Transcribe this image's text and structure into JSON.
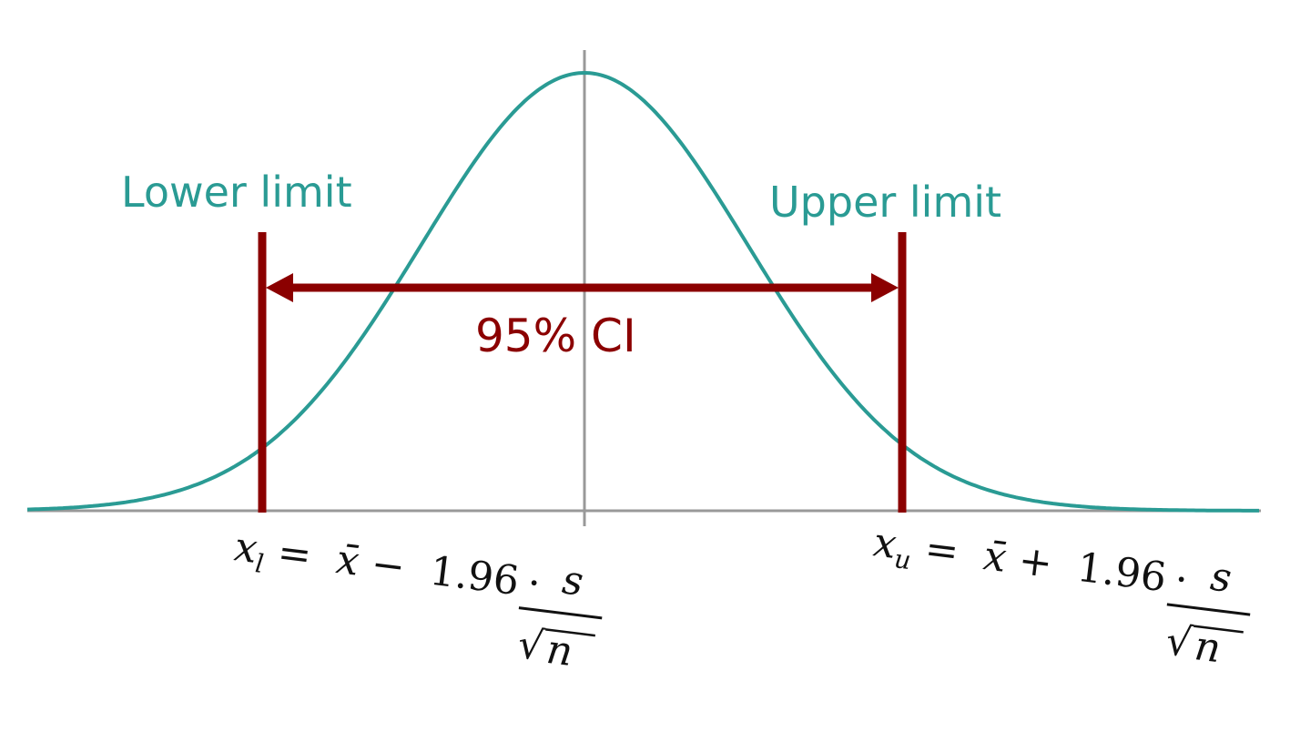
{
  "labels": {
    "lower_limit": "Lower limit",
    "upper_limit": "Upper limit",
    "confidence_interval": "95% CI"
  },
  "formulas": {
    "lower": {
      "lhs_var": "x",
      "lhs_sub": "l",
      "op": "−",
      "z": "1.96",
      "numerator": "s",
      "denominator": "n"
    },
    "upper": {
      "lhs_var": "x",
      "lhs_sub": "u",
      "op": "+",
      "z": "1.96",
      "numerator": "s",
      "denominator": "n"
    }
  },
  "colors": {
    "curve": "#2a9b94",
    "limits": "#8b0000",
    "axis": "#999999",
    "center_line": "#999999",
    "formula": "#111111"
  }
}
